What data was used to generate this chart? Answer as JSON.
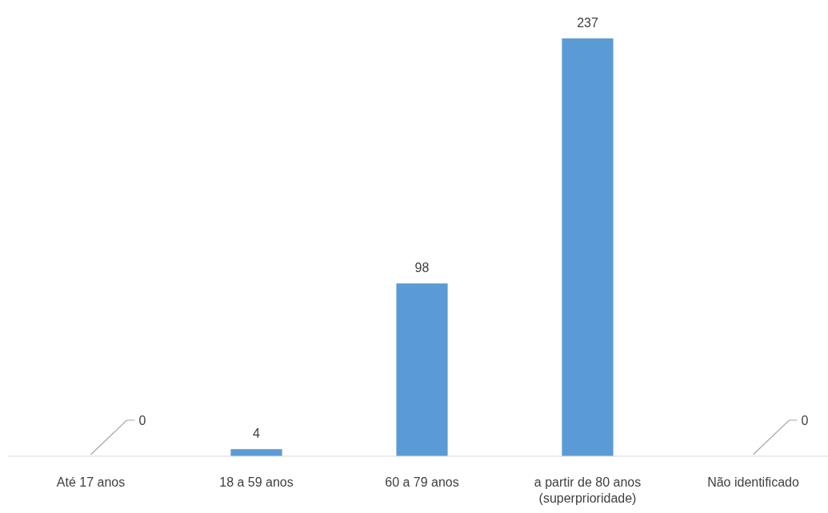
{
  "chart_data": {
    "type": "bar",
    "categories": [
      "Até 17 anos",
      "18 a 59 anos",
      "60 a 79 anos",
      "a partir de 80 anos (superprioridade)",
      "Não identificado"
    ],
    "values": [
      0,
      4,
      98,
      237,
      0
    ],
    "color": "#5b9bd5",
    "value_labels": [
      null,
      "4",
      "98",
      "237",
      null
    ],
    "annotations": [
      {
        "text": "0",
        "x": "Até 17 anos",
        "y": 0
      },
      {
        "text": "0",
        "x": "Não identificado",
        "y": 0
      }
    ]
  }
}
